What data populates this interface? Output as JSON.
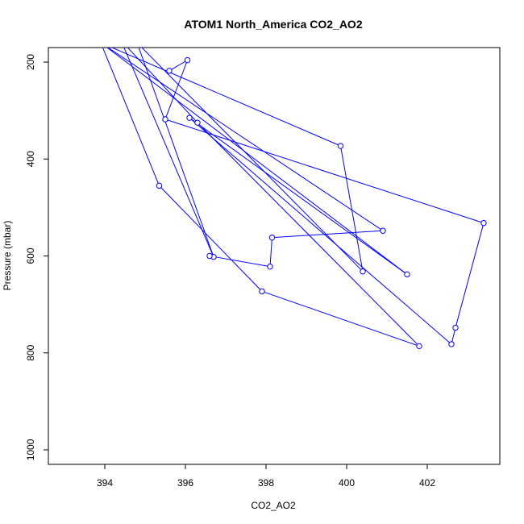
{
  "chart_data": {
    "type": "line",
    "title": "ATOM1 North_America CO2_AO2",
    "xlabel": "CO2_AO2",
    "ylabel": "Pressure (mbar)",
    "xlim": [
      392.6,
      403.8
    ],
    "ylim": [
      1030,
      170
    ],
    "y_reversed": true,
    "xticks": [
      394,
      396,
      398,
      400,
      402
    ],
    "yticks": [
      200,
      400,
      600,
      800,
      1000
    ],
    "grid": false,
    "legend": "none",
    "color": "#0000ff",
    "series": [
      {
        "x": [
          395.6,
          396.05,
          395.5,
          403.4,
          402.7,
          402.6,
          396.1,
          401.5,
          393.9,
          395.35,
          397.9,
          401.8,
          396.3,
          394.4,
          396.7,
          394.8,
          400.4,
          399.85,
          393.9,
          400.9,
          398.15,
          398.1,
          396.6
        ],
        "y": [
          218,
          196,
          318,
          532,
          748,
          782,
          315,
          638,
          160,
          455,
          673,
          786,
          325,
          155,
          602,
          160,
          632,
          373,
          160,
          548,
          562,
          622,
          600
        ]
      }
    ]
  }
}
